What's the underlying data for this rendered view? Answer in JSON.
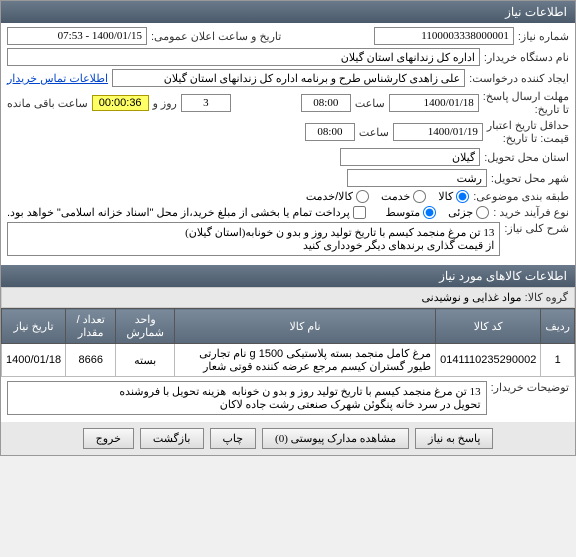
{
  "header": {
    "title": "اطلاعات نیاز"
  },
  "form": {
    "need_number_label": "شماره نیاز:",
    "need_number": "1100003338000001",
    "announce_label": "تاریخ و ساعت اعلان عمومی:",
    "announce_value": "1400/01/15 - 07:53",
    "buyer_org_label": "نام دستگاه خریدار:",
    "buyer_org": "اداره کل زندانهای استان گیلان",
    "creator_label": "ایجاد کننده درخواست:",
    "creator": "علی زاهدی کارشناس طرح و برنامه اداره کل زندانهای استان گیلان",
    "contact_link": "اطلاعات تماس خریدار",
    "deadline_send_label": "مهلت ارسال پاسخ:\nتا تاریخ:",
    "deadline_date": "1400/01/18",
    "time_label": "ساعت",
    "deadline_time": "08:00",
    "days_count": "3",
    "days_and_label": "روز و",
    "countdown": "00:00:36",
    "remaining_label": "ساعت باقی مانده",
    "validity_label": "حداقل تاریخ اعتبار\nقیمت: تا تاریخ:",
    "validity_date": "1400/01/19",
    "validity_time": "08:00",
    "province_label": "استان محل تحویل:",
    "province": "گیلان",
    "city_label": "شهر محل تحویل:",
    "city": "رشت",
    "category_label": "طبقه بندی موضوعی:",
    "cat_goods": "کالا",
    "cat_service": "خدمت",
    "cat_goods_service": "کالا/خدمت",
    "process_label": "نوع فرآیند خرید :",
    "proc_low": "جزئی",
    "proc_med": "متوسط",
    "partial_pay_label": "پرداخت تمام یا بخشی از مبلغ خرید،از محل \"اسناد خزانه اسلامی\" خواهد بود.",
    "desc_label": "شرح کلی نیاز:",
    "desc_text": "13 تن مرغ منجمد کیسم با تاریخ تولید روز و بدو ن خونابه(استان گیلان)\nاز قیمت گذاری برندهای دیگر خودداری کنید"
  },
  "items_section": {
    "title": "اطلاعات کالاهای مورد نیاز",
    "group_label": "گروه کالا:",
    "group_value": "مواد غذایی و نوشیدنی",
    "table": {
      "headers": [
        "ردیف",
        "کد کالا",
        "نام کالا",
        "واحد شمارش",
        "تعداد / مقدار",
        "تاریخ نیاز"
      ],
      "rows": [
        [
          "1",
          "0141110235290002",
          "مرغ کامل منجمد بسته پلاستیکی 1500 g نام تجارتی طیور گستران کیسم مرجع عرضه کننده قوتی شعار",
          "بسته",
          "8666",
          "1400/01/18"
        ]
      ]
    }
  },
  "buyer_notes": {
    "label": "توضیحات خریدار:",
    "text": "13 تن مرغ منجمد کیسم با تاریخ تولید روز و بدو ن خونابه  هزینه تحویل با فروشنده\nتحویل در سرد خانه پنگوئن شهرک صنعتی رشت جاده لاکان"
  },
  "footer": {
    "answer": "پاسخ به نیاز",
    "attachments": "مشاهده مدارک پیوستی (0)",
    "print": "چاپ",
    "back": "بازگشت",
    "exit": "خروج"
  }
}
